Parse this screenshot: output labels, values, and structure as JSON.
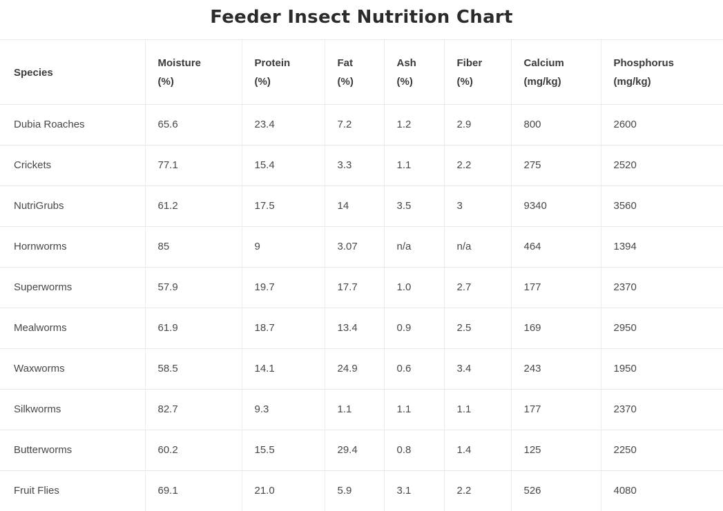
{
  "page": {
    "title": "Feeder Insect Nutrition Chart"
  },
  "colors": {
    "background": "#ffffff",
    "border": "#e8e8e8",
    "title_text": "#2b2b2b",
    "header_text": "#3b3b3b",
    "body_text": "#474747"
  },
  "table": {
    "columns": [
      {
        "label": "Species",
        "unit": ""
      },
      {
        "label": "Moisture",
        "unit": "(%)"
      },
      {
        "label": "Protein",
        "unit": "(%)"
      },
      {
        "label": "Fat",
        "unit": "(%)"
      },
      {
        "label": "Ash",
        "unit": "(%)"
      },
      {
        "label": "Fiber",
        "unit": "(%)"
      },
      {
        "label": "Calcium",
        "unit": "(mg/kg)"
      },
      {
        "label": "Phosphorus",
        "unit": "(mg/kg)"
      }
    ]
  },
  "chart_data": {
    "type": "table",
    "title": "Feeder Insect Nutrition Chart",
    "columns": [
      "Species",
      "Moisture (%)",
      "Protein (%)",
      "Fat (%)",
      "Ash (%)",
      "Fiber (%)",
      "Calcium (mg/kg)",
      "Phosphorus (mg/kg)"
    ],
    "rows": [
      [
        "Dubia Roaches",
        "65.6",
        "23.4",
        "7.2",
        "1.2",
        "2.9",
        "800",
        "2600"
      ],
      [
        "Crickets",
        "77.1",
        "15.4",
        "3.3",
        "1.1",
        "2.2",
        "275",
        "2520"
      ],
      [
        "NutriGrubs",
        "61.2",
        "17.5",
        "14",
        "3.5",
        "3",
        "9340",
        "3560"
      ],
      [
        "Hornworms",
        "85",
        "9",
        "3.07",
        "n/a",
        "n/a",
        "464",
        "1394"
      ],
      [
        "Superworms",
        "57.9",
        "19.7",
        "17.7",
        "1.0",
        "2.7",
        "177",
        "2370"
      ],
      [
        "Mealworms",
        "61.9",
        "18.7",
        "13.4",
        "0.9",
        "2.5",
        "169",
        "2950"
      ],
      [
        "Waxworms",
        "58.5",
        "14.1",
        "24.9",
        "0.6",
        "3.4",
        "243",
        "1950"
      ],
      [
        "Silkworms",
        "82.7",
        "9.3",
        "1.1",
        "1.1",
        "1.1",
        "177",
        "2370"
      ],
      [
        "Butterworms",
        "60.2",
        "15.5",
        "29.4",
        "0.8",
        "1.4",
        "125",
        "2250"
      ],
      [
        "Fruit Flies",
        "69.1",
        "21.0",
        "5.9",
        "3.1",
        "2.2",
        "526",
        "4080"
      ]
    ]
  }
}
